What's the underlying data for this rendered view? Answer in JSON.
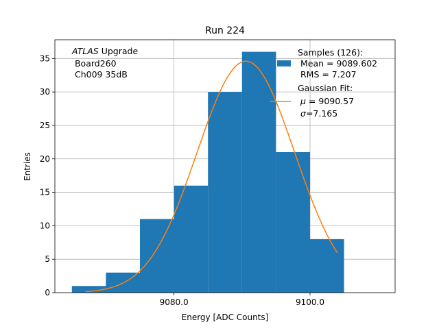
{
  "chart_data": {
    "type": "bar",
    "title": "Run 224",
    "xlabel": "Energy [ADC Counts]",
    "ylabel": "Entries",
    "xlim": [
      9062.5,
      9112.5
    ],
    "ylim": [
      0,
      37.8
    ],
    "x_ticks": [
      9080,
      9100
    ],
    "x_tick_labels": [
      "9080.0",
      "9100.0"
    ],
    "y_ticks": [
      0,
      5,
      10,
      15,
      20,
      25,
      30,
      35
    ],
    "y_tick_labels": [
      "0",
      "5",
      "10",
      "15",
      "20",
      "25",
      "30",
      "35"
    ],
    "grid": true,
    "histogram": {
      "bin_edges": [
        9065,
        9070,
        9075,
        9080,
        9085,
        9090,
        9095,
        9100,
        9105
      ],
      "counts": [
        1,
        3,
        11,
        16,
        30,
        36,
        21,
        8
      ],
      "color": "#1f77b4"
    },
    "fit": {
      "type": "gaussian",
      "mu": 9090.57,
      "sigma": 7.165,
      "amplitude": 34.6,
      "x_range": [
        9067,
        9104
      ],
      "color": "#ff7f0e"
    },
    "annotation": {
      "italic": "ATLAS",
      "rest": " Upgrade",
      "line2": " Board260",
      "line3": " Ch009 35dB"
    },
    "legend": {
      "placement": "top-right",
      "samples_line1": "Samples (126):",
      "samples_line2": " Mean = 9089.602",
      "samples_line3": " RMS = 7.207",
      "fit_line1": "Gaussian Fit:",
      "fit_mu_symbol": "μ",
      "fit_mu_rest": " = 9090.57",
      "fit_sigma_symbol": "σ",
      "fit_sigma_rest": "=7.165"
    }
  }
}
